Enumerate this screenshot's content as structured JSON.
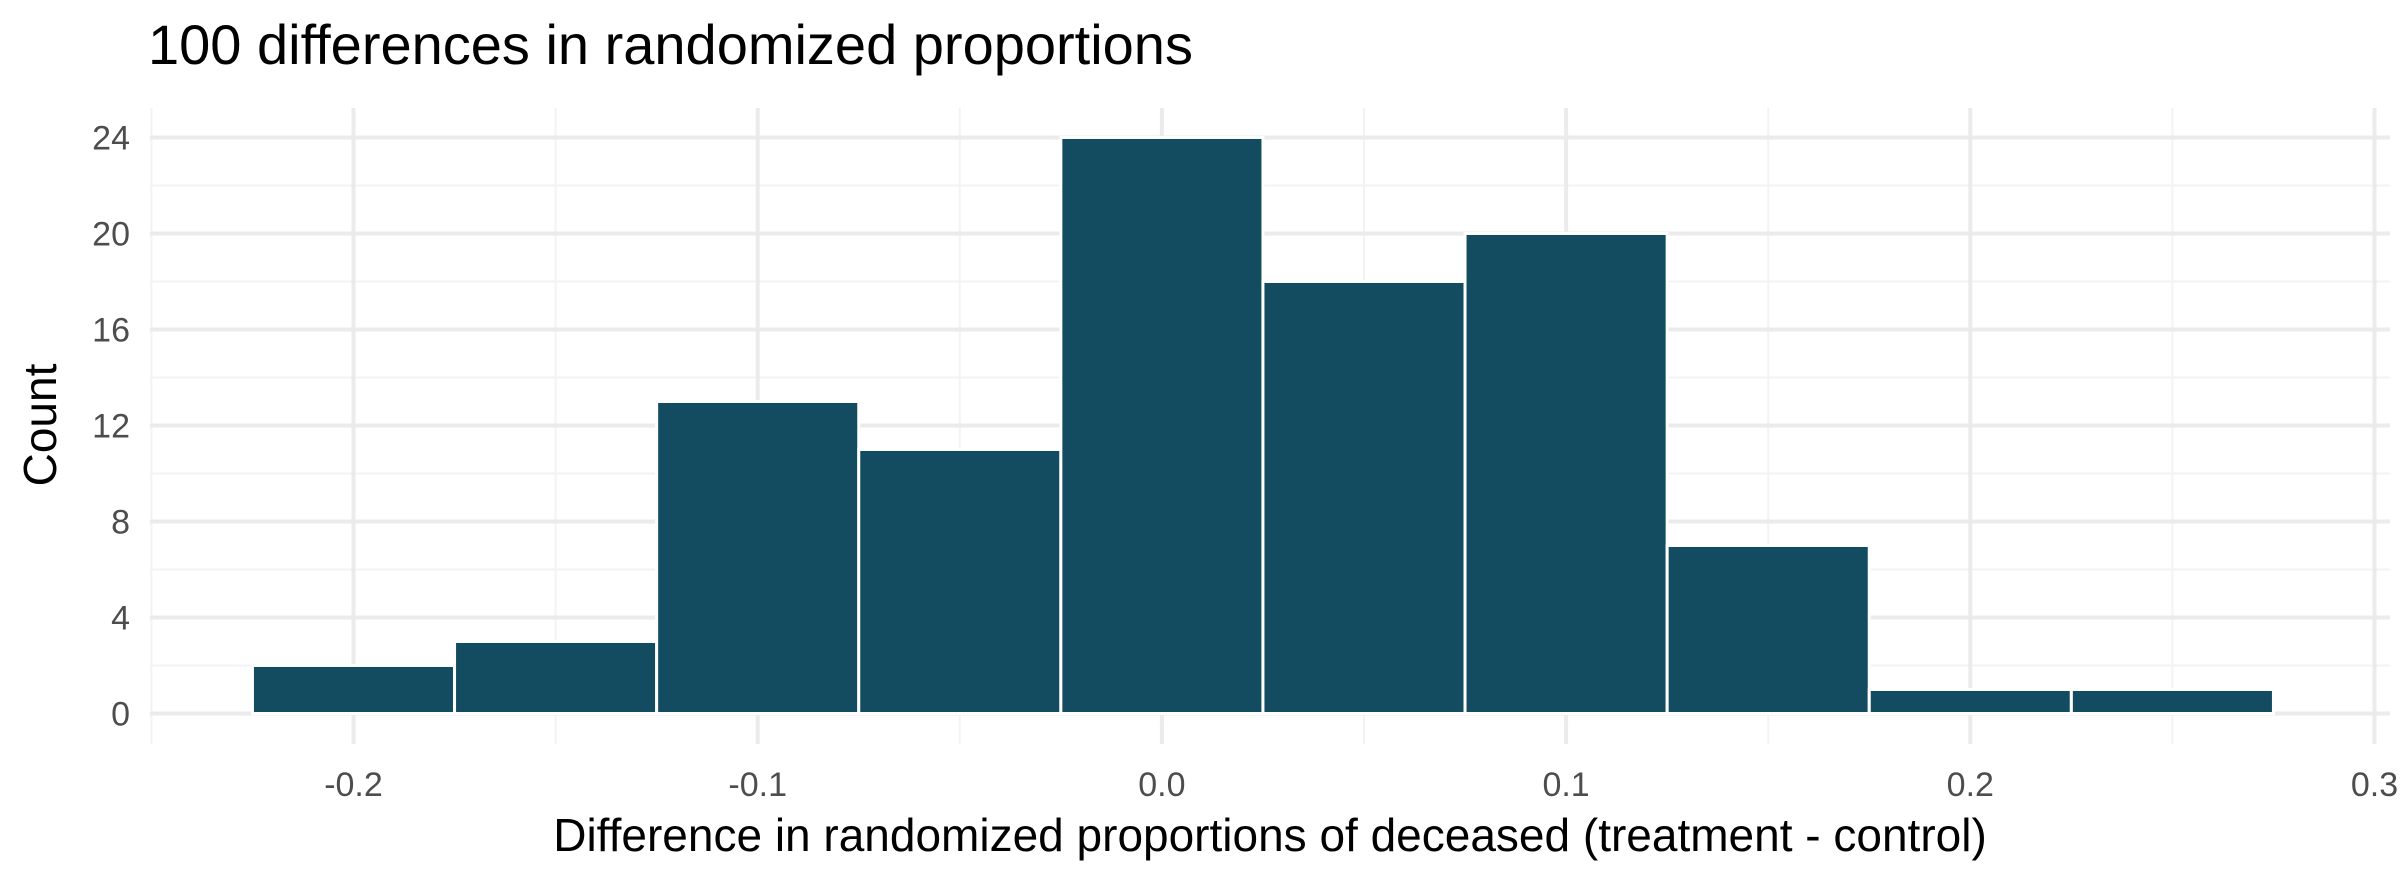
{
  "chart_data": {
    "type": "bar",
    "title": "100 differences in randomized proportions",
    "xlabel": "Difference in randomized proportions of deceased (treatment - control)",
    "ylabel": "Count",
    "bin_width": 0.05,
    "bins": [
      {
        "x_start": -0.225,
        "x_end": -0.175,
        "count": 2
      },
      {
        "x_start": -0.175,
        "x_end": -0.125,
        "count": 3
      },
      {
        "x_start": -0.125,
        "x_end": -0.075,
        "count": 13
      },
      {
        "x_start": -0.075,
        "x_end": -0.025,
        "count": 11
      },
      {
        "x_start": -0.025,
        "x_end": 0.025,
        "count": 24
      },
      {
        "x_start": 0.025,
        "x_end": 0.075,
        "count": 18
      },
      {
        "x_start": 0.075,
        "x_end": 0.125,
        "count": 20
      },
      {
        "x_start": 0.125,
        "x_end": 0.175,
        "count": 7
      },
      {
        "x_start": 0.175,
        "x_end": 0.225,
        "count": 1
      },
      {
        "x_start": 0.225,
        "x_end": 0.275,
        "count": 1
      }
    ],
    "xlim": [
      -0.25,
      0.3
    ],
    "ylim": [
      0,
      25
    ],
    "x_ticks": [
      -0.2,
      -0.1,
      0.0,
      0.1,
      0.2,
      0.3
    ],
    "x_tick_labels": [
      "-0.2",
      "-0.1",
      "0.0",
      "0.1",
      "0.2",
      "0.3"
    ],
    "y_ticks": [
      0,
      4,
      8,
      12,
      16,
      20,
      24
    ],
    "y_tick_labels": [
      "0",
      "4",
      "8",
      "12",
      "16",
      "20",
      "24"
    ],
    "grid": true,
    "legend": "none",
    "colors": {
      "bar_fill": "#134c60",
      "bar_stroke": "#ffffff",
      "grid_major": "#ebebeb",
      "grid_minor": "#f3f3f3",
      "tick_text": "#4d4d4d",
      "title_text": "#000000"
    }
  }
}
